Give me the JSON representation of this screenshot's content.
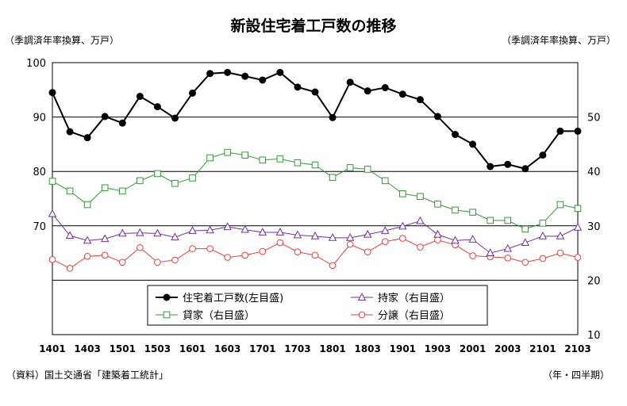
{
  "header": {
    "title": "新設住宅着工戸数の推移",
    "left_unit": "（季調済年率換算、万戸）",
    "right_unit": "（季調済年率換算、万戸）"
  },
  "footer": {
    "source": "（資料）国土交通省「建築着工統計」",
    "period_label": "（年・四半期）"
  },
  "chart_data": {
    "type": "line",
    "title": "新設住宅着工戸数の推移",
    "x_tick_labels": [
      "1401",
      "1403",
      "1501",
      "1503",
      "1601",
      "1603",
      "1701",
      "1703",
      "1801",
      "1803",
      "1901",
      "1903",
      "2001",
      "2003",
      "2101",
      "2103"
    ],
    "x": [
      "1401",
      "1402",
      "1403",
      "1404",
      "1501",
      "1502",
      "1503",
      "1504",
      "1601",
      "1602",
      "1603",
      "1604",
      "1701",
      "1702",
      "1703",
      "1704",
      "1801",
      "1802",
      "1803",
      "1804",
      "1901",
      "1902",
      "1903",
      "1904",
      "2001",
      "2002",
      "2003",
      "2004",
      "2101",
      "2102",
      "2103"
    ],
    "y_left": {
      "range": [
        50,
        100
      ],
      "ticks": [
        70,
        80,
        90,
        100
      ]
    },
    "y_right": {
      "range": [
        10,
        60
      ],
      "ticks": [
        10,
        20,
        30,
        40,
        50
      ]
    },
    "grid": true,
    "legend_position": "inside-bottom",
    "series": [
      {
        "name": "住宅着工戸数(左目盛)",
        "axis": "left",
        "color": "#000000",
        "marker": "filled-circle",
        "values": [
          94.5,
          87.3,
          86.2,
          90.1,
          88.9,
          93.8,
          91.9,
          89.8,
          94.4,
          98.0,
          98.2,
          97.5,
          96.8,
          98.2,
          95.5,
          94.6,
          89.9,
          96.4,
          94.8,
          95.4,
          94.2,
          93.2,
          90.1,
          86.8,
          85.0,
          80.9,
          81.3,
          80.5,
          83.0,
          87.4,
          87.4
        ]
      },
      {
        "name": "持家（右目盛）",
        "axis": "right",
        "color": "#7030a0",
        "marker": "open-triangle",
        "values": [
          32.2,
          28.2,
          27.3,
          27.6,
          28.6,
          28.7,
          28.6,
          27.9,
          29.1,
          29.2,
          29.8,
          29.3,
          28.8,
          28.8,
          28.3,
          28.1,
          27.8,
          27.8,
          28.4,
          29.1,
          29.9,
          30.9,
          28.4,
          27.3,
          27.5,
          25.0,
          25.8,
          26.9,
          28.1,
          28.1,
          29.7
        ]
      },
      {
        "name": "貸家（右目盛）",
        "axis": "right",
        "color": "#339933",
        "marker": "open-square",
        "values": [
          38.2,
          36.4,
          33.9,
          37.0,
          36.4,
          38.3,
          39.6,
          37.8,
          38.8,
          42.5,
          43.5,
          43.0,
          42.1,
          42.3,
          41.6,
          41.2,
          38.9,
          40.7,
          40.4,
          38.3,
          35.9,
          35.4,
          34.0,
          32.9,
          32.5,
          31.0,
          31.0,
          29.4,
          30.5,
          33.9,
          33.2
        ]
      },
      {
        "name": "分譲（右目盛）",
        "axis": "right",
        "color": "#e8403a",
        "marker": "open-circle",
        "values": [
          23.8,
          22.2,
          24.4,
          24.6,
          23.3,
          26.0,
          23.3,
          23.7,
          25.8,
          25.8,
          24.2,
          24.6,
          25.3,
          26.9,
          25.2,
          24.6,
          22.7,
          26.6,
          25.2,
          27.1,
          27.7,
          26.1,
          27.4,
          26.5,
          24.5,
          24.3,
          24.1,
          23.3,
          24.0,
          25.0,
          24.2
        ]
      }
    ]
  }
}
